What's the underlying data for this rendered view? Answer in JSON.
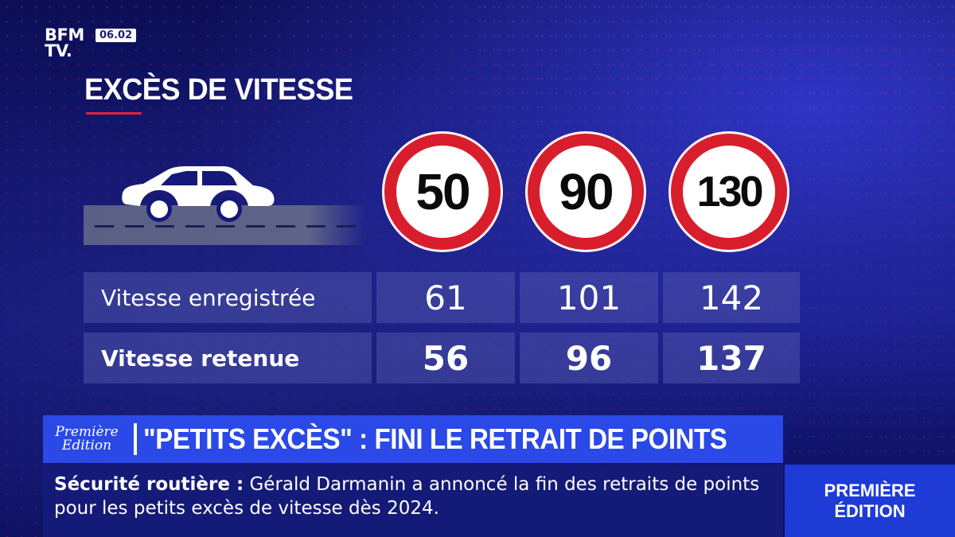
{
  "channel": {
    "logo_line1": "BFM",
    "logo_line2": "TV.",
    "time": "06.02"
  },
  "title": "EXCÈS DE VITESSE",
  "signs": [
    "50",
    "90",
    "130"
  ],
  "table": {
    "rows": [
      {
        "label": "Vitesse enregistrée",
        "values": [
          "61",
          "101",
          "142"
        ]
      },
      {
        "label": "Vitesse retenue",
        "values": [
          "56",
          "96",
          "137"
        ]
      }
    ]
  },
  "headline": {
    "show_line1": "Première",
    "show_line2": "Edition",
    "text": "\"PETITS EXCÈS\" : FINI LE RETRAIT DE POINTS"
  },
  "ticker": {
    "label": "Sécurité routière :",
    "text": "Gérald Darmanin a annoncé la fin des retraits de points pour les petits excès de vitesse dès 2024."
  },
  "edition_box": {
    "line1": "PREMIÈRE",
    "line2": "ÉDITION"
  },
  "colors": {
    "sign_red": "#d81e2c",
    "headline_blue": "#2a49e6",
    "accent_red": "#e0233c"
  },
  "icons": [
    "car-icon",
    "speed-limit-sign-icon"
  ]
}
